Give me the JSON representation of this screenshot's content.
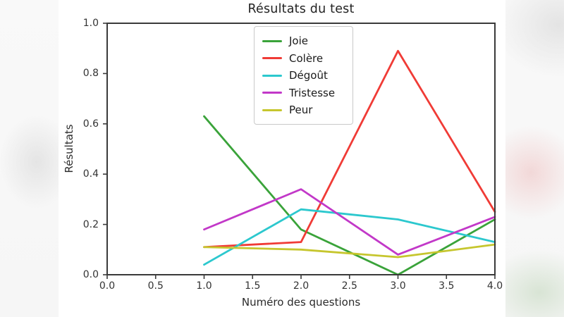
{
  "colors": {
    "spine": "#3a3a3a",
    "figure_background": "#ffffff"
  },
  "chart_data": {
    "type": "line",
    "title": "Résultats du test",
    "xlabel": "Numéro des questions",
    "ylabel": "Résultats",
    "xlim": [
      0.0,
      4.0
    ],
    "ylim": [
      0.0,
      1.0
    ],
    "grid": false,
    "legend_position": "upper center inside plot",
    "x_ticks": [
      0.0,
      0.5,
      1.0,
      1.5,
      2.0,
      2.5,
      3.0,
      3.5,
      4.0
    ],
    "x_tick_labels": [
      "0.0",
      "0.5",
      "1.0",
      "1.5",
      "2.0",
      "2.5",
      "3.0",
      "3.5",
      "4.0"
    ],
    "y_ticks": [
      0.0,
      0.2,
      0.4,
      0.6,
      0.8,
      1.0
    ],
    "y_tick_labels": [
      "0.0",
      "0.2",
      "0.4",
      "0.6",
      "0.8",
      "1.0"
    ],
    "x": [
      1,
      2,
      3,
      4
    ],
    "series": [
      {
        "name": "Joie",
        "color": "#3aa33a",
        "values": [
          0.63,
          0.18,
          0.0,
          0.22
        ]
      },
      {
        "name": "Colère",
        "color": "#f03b36",
        "values": [
          0.11,
          0.13,
          0.89,
          0.25
        ]
      },
      {
        "name": "Dégoût",
        "color": "#2cc8ce",
        "values": [
          0.04,
          0.26,
          0.22,
          0.13
        ]
      },
      {
        "name": "Tristesse",
        "color": "#c238c8",
        "values": [
          0.18,
          0.34,
          0.08,
          0.23
        ]
      },
      {
        "name": "Peur",
        "color": "#c6c62e",
        "values": [
          0.11,
          0.1,
          0.07,
          0.12
        ]
      }
    ]
  }
}
